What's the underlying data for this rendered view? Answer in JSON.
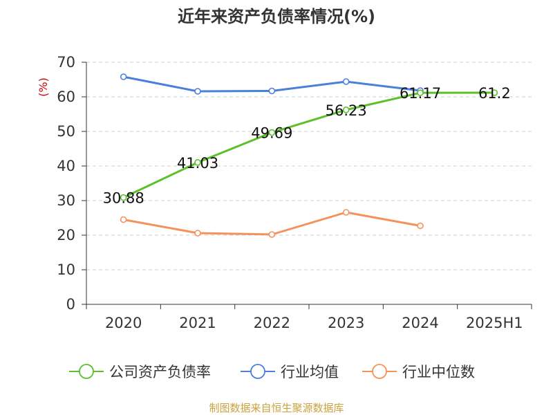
{
  "chart_data": {
    "type": "line",
    "title": "近年来资产负债率情况(%)",
    "y_unit": "(%)",
    "categories": [
      "2020",
      "2021",
      "2022",
      "2023",
      "2024",
      "2025H1"
    ],
    "ylim": [
      0,
      70
    ],
    "yticks": [
      0,
      10,
      20,
      30,
      40,
      50,
      60,
      70
    ],
    "grid": true,
    "legend_position": "bottom",
    "series": [
      {
        "name": "公司资产负债率",
        "color": "#5cc02b",
        "values": [
          30.88,
          41.03,
          49.69,
          56.23,
          61.17,
          61.2
        ],
        "labels": [
          "30.88",
          "41.03",
          "49.69",
          "56.23",
          "61.17",
          "61.2"
        ]
      },
      {
        "name": "行业均值",
        "color": "#4a7fdc",
        "values": [
          65.8,
          61.6,
          61.7,
          64.4,
          61.8,
          null
        ]
      },
      {
        "name": "行业中位数",
        "color": "#f5915a",
        "values": [
          24.5,
          20.6,
          20.2,
          26.6,
          22.7,
          null
        ]
      }
    ]
  },
  "source": {
    "text": "制图数据来自恒生聚源数据库",
    "color": "#c8a23c"
  },
  "colors": {
    "unit": "#cc0000",
    "axis": "#333333",
    "grid": "#cfcfcf"
  }
}
